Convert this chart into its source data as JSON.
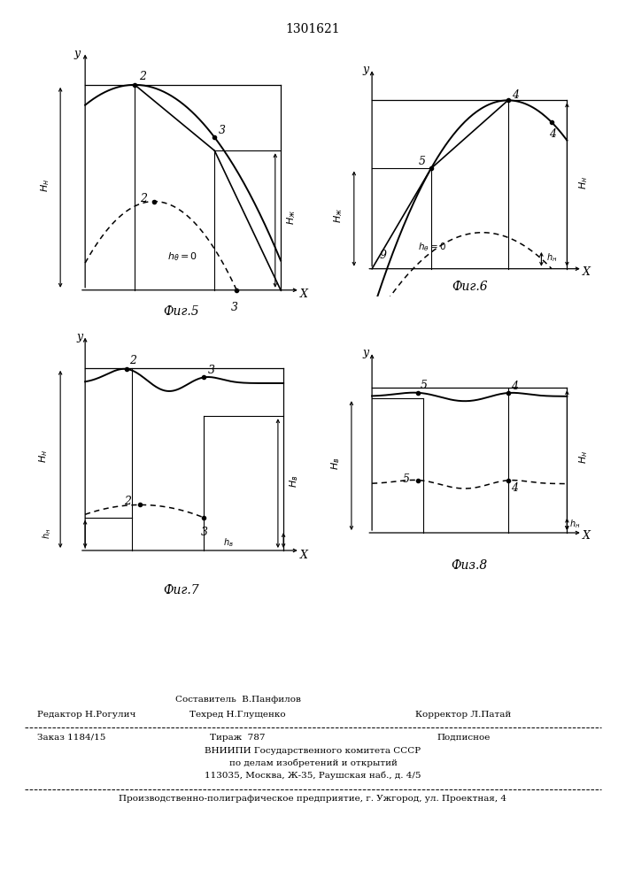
{
  "title": "1301621",
  "fig5_caption": "Фиг.5",
  "fig6_caption": "Фиг.6",
  "fig7_caption": "Фиг.7",
  "fig8_caption": "Физ.8",
  "line1a": "Составитель  В.Панфилов",
  "line1b": "Редактор Н.Рогулич",
  "line1c": "Техред Н.Глущенко",
  "line1d": "Корректор Л.Патай",
  "line2a": "Заказ 1184/15",
  "line2b": "Тираж  787",
  "line2c": "Подписное",
  "line3": "ВНИИПИ Государственного комитета СССР",
  "line4": "по делам изобретений и открытий",
  "line5": "113035, Москва, Ж-35, Раушская наб., д. 4/5",
  "line6": "Производственно-полиграфическое предприятие, г. Ужгород, ул. Проектная, 4"
}
